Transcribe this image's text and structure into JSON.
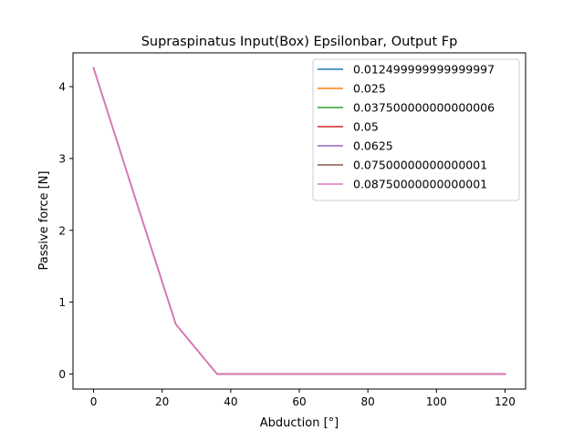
{
  "chart_data": {
    "type": "line",
    "title": "Supraspinatus Input(Box) Epsilonbar, Output Fp",
    "xlabel": "Abduction [°]",
    "ylabel": "Passive force [N]",
    "xlim": [
      -6,
      126
    ],
    "ylim": [
      -0.21,
      4.47
    ],
    "xticks": [
      0,
      20,
      40,
      60,
      80,
      100,
      120
    ],
    "yticks": [
      0,
      1,
      2,
      3,
      4
    ],
    "grid": false,
    "legend_position": "top-right",
    "x": [
      0,
      12,
      24,
      36,
      48,
      60,
      72,
      84,
      96,
      108,
      120
    ],
    "series": [
      {
        "name": "0.012499999999999997",
        "color": "#1f77b4",
        "values": [
          4.26,
          2.47,
          0.69,
          0.0,
          0.0,
          0.0,
          0.0,
          0.0,
          0.0,
          0.0,
          0.0
        ]
      },
      {
        "name": "0.025",
        "color": "#ff7f0e",
        "values": [
          4.26,
          2.47,
          0.69,
          0.0,
          0.0,
          0.0,
          0.0,
          0.0,
          0.0,
          0.0,
          0.0
        ]
      },
      {
        "name": "0.037500000000000006",
        "color": "#2ca02c",
        "values": [
          4.26,
          2.47,
          0.69,
          0.0,
          0.0,
          0.0,
          0.0,
          0.0,
          0.0,
          0.0,
          0.0
        ]
      },
      {
        "name": "0.05",
        "color": "#d62728",
        "values": [
          4.26,
          2.47,
          0.69,
          0.0,
          0.0,
          0.0,
          0.0,
          0.0,
          0.0,
          0.0,
          0.0
        ]
      },
      {
        "name": "0.0625",
        "color": "#9467bd",
        "values": [
          4.26,
          2.47,
          0.69,
          0.0,
          0.0,
          0.0,
          0.0,
          0.0,
          0.0,
          0.0,
          0.0
        ]
      },
      {
        "name": "0.07500000000000001",
        "color": "#8c564b",
        "values": [
          4.26,
          2.47,
          0.69,
          0.0,
          0.0,
          0.0,
          0.0,
          0.0,
          0.0,
          0.0,
          0.0
        ]
      },
      {
        "name": "0.08750000000000001",
        "color": "#e377c2",
        "values": [
          4.26,
          2.47,
          0.69,
          0.0,
          0.0,
          0.0,
          0.0,
          0.0,
          0.0,
          0.0,
          0.0
        ]
      }
    ]
  }
}
